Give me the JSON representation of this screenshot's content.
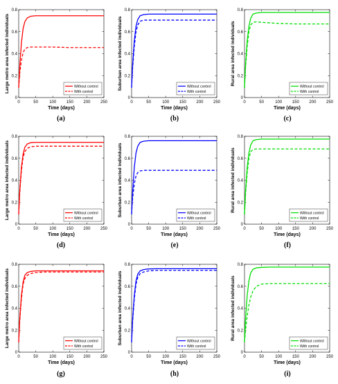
{
  "chart_data": [
    {
      "type": "line",
      "panel_label": "(a)",
      "color": "#ff0000",
      "ylabel": "Large metro area infected individuals",
      "xlabel": "Time (days)",
      "xlim": [
        0,
        250
      ],
      "ylim": [
        0,
        0.8
      ],
      "xticks": [
        0,
        50,
        100,
        150,
        200,
        250
      ],
      "yticks": [
        0,
        0.2,
        0.4,
        0.6,
        0.8
      ],
      "legend_position": "bottom-right",
      "series": [
        {
          "name": "Without control",
          "style": "solid",
          "x": [
            0,
            3,
            8,
            13,
            18,
            25,
            35,
            50,
            75,
            100,
            150,
            200,
            250
          ],
          "y": [
            0.09,
            0.28,
            0.5,
            0.63,
            0.69,
            0.725,
            0.74,
            0.745,
            0.745,
            0.745,
            0.745,
            0.745,
            0.745
          ]
        },
        {
          "name": "With control",
          "style": "dashed",
          "x": [
            0,
            3,
            8,
            13,
            18,
            25,
            35,
            50,
            75,
            100,
            150,
            200,
            250
          ],
          "y": [
            0.09,
            0.22,
            0.34,
            0.41,
            0.44,
            0.455,
            0.46,
            0.46,
            0.46,
            0.46,
            0.455,
            0.455,
            0.455
          ]
        }
      ]
    },
    {
      "type": "line",
      "panel_label": "(b)",
      "color": "#0000ff",
      "ylabel": "Suburban area infected individuals",
      "xlabel": "Time (days)",
      "xlim": [
        0,
        250
      ],
      "ylim": [
        0,
        0.8
      ],
      "xticks": [
        0,
        50,
        100,
        150,
        200,
        250
      ],
      "yticks": [
        0,
        0.2,
        0.4,
        0.6,
        0.8
      ],
      "legend_position": "bottom-right",
      "series": [
        {
          "name": "Without control",
          "style": "solid",
          "x": [
            0,
            3,
            8,
            13,
            18,
            25,
            35,
            50,
            75,
            100,
            150,
            200,
            250
          ],
          "y": [
            0.09,
            0.3,
            0.52,
            0.65,
            0.71,
            0.745,
            0.755,
            0.76,
            0.76,
            0.76,
            0.76,
            0.76,
            0.76
          ]
        },
        {
          "name": "With control",
          "style": "dashed",
          "x": [
            0,
            3,
            8,
            13,
            18,
            25,
            35,
            50,
            75,
            100,
            150,
            200,
            250
          ],
          "y": [
            0.09,
            0.27,
            0.47,
            0.6,
            0.66,
            0.695,
            0.705,
            0.705,
            0.705,
            0.705,
            0.705,
            0.705,
            0.705
          ]
        }
      ]
    },
    {
      "type": "line",
      "panel_label": "(c)",
      "color": "#00dd00",
      "ylabel": "Rural area infected individuals",
      "xlabel": "Time (days)",
      "xlim": [
        0,
        250
      ],
      "ylim": [
        0,
        0.8
      ],
      "xticks": [
        0,
        50,
        100,
        150,
        200,
        250
      ],
      "yticks": [
        0,
        0.2,
        0.4,
        0.6,
        0.8
      ],
      "legend_position": "bottom-right",
      "series": [
        {
          "name": "Without control",
          "style": "solid",
          "x": [
            0,
            3,
            8,
            13,
            18,
            25,
            35,
            50,
            75,
            100,
            150,
            200,
            250
          ],
          "y": [
            0.09,
            0.3,
            0.52,
            0.65,
            0.72,
            0.76,
            0.77,
            0.775,
            0.775,
            0.775,
            0.775,
            0.775,
            0.775
          ]
        },
        {
          "name": "With control",
          "style": "dashed",
          "x": [
            0,
            3,
            8,
            13,
            18,
            25,
            35,
            50,
            75,
            100,
            150,
            200,
            250
          ],
          "y": [
            0.09,
            0.27,
            0.47,
            0.6,
            0.66,
            0.685,
            0.69,
            0.685,
            0.68,
            0.675,
            0.67,
            0.67,
            0.67
          ]
        }
      ]
    },
    {
      "type": "line",
      "panel_label": "(d)",
      "color": "#ff0000",
      "ylabel": "Large metro area infected individuals",
      "xlabel": "Time (days)",
      "xlim": [
        0,
        250
      ],
      "ylim": [
        0,
        0.8
      ],
      "xticks": [
        0,
        50,
        100,
        150,
        200,
        250
      ],
      "yticks": [
        0,
        0.2,
        0.4,
        0.6,
        0.8
      ],
      "legend_position": "bottom-right",
      "series": [
        {
          "name": "Without control",
          "style": "solid",
          "x": [
            0,
            3,
            8,
            13,
            18,
            25,
            35,
            50,
            75,
            100,
            150,
            200,
            250
          ],
          "y": [
            0.09,
            0.3,
            0.52,
            0.64,
            0.7,
            0.73,
            0.742,
            0.745,
            0.745,
            0.745,
            0.745,
            0.745,
            0.745
          ]
        },
        {
          "name": "With control",
          "style": "dashed",
          "x": [
            0,
            3,
            8,
            13,
            18,
            25,
            35,
            50,
            75,
            100,
            150,
            200,
            250
          ],
          "y": [
            0.09,
            0.28,
            0.49,
            0.61,
            0.66,
            0.69,
            0.705,
            0.71,
            0.71,
            0.71,
            0.71,
            0.71,
            0.71
          ]
        }
      ]
    },
    {
      "type": "line",
      "panel_label": "(e)",
      "color": "#0000ff",
      "ylabel": "Suburban area infected individuals",
      "xlabel": "Time (days)",
      "xlim": [
        0,
        250
      ],
      "ylim": [
        0,
        0.8
      ],
      "xticks": [
        0,
        50,
        100,
        150,
        200,
        250
      ],
      "yticks": [
        0,
        0.2,
        0.4,
        0.6,
        0.8
      ],
      "legend_position": "bottom-right",
      "series": [
        {
          "name": "Without control",
          "style": "solid",
          "x": [
            0,
            3,
            8,
            13,
            18,
            25,
            35,
            50,
            75,
            100,
            150,
            200,
            250
          ],
          "y": [
            0.09,
            0.3,
            0.52,
            0.65,
            0.71,
            0.745,
            0.755,
            0.76,
            0.76,
            0.76,
            0.76,
            0.76,
            0.76
          ]
        },
        {
          "name": "With control",
          "style": "dashed",
          "x": [
            0,
            3,
            8,
            13,
            18,
            25,
            35,
            50,
            75,
            100,
            150,
            200,
            250
          ],
          "y": [
            0.09,
            0.24,
            0.37,
            0.44,
            0.47,
            0.485,
            0.49,
            0.49,
            0.49,
            0.49,
            0.49,
            0.49,
            0.49
          ]
        }
      ]
    },
    {
      "type": "line",
      "panel_label": "(f)",
      "color": "#00dd00",
      "ylabel": "Rural area infected individuals",
      "xlabel": "Time (days)",
      "xlim": [
        0,
        250
      ],
      "ylim": [
        0,
        0.8
      ],
      "xticks": [
        0,
        50,
        100,
        150,
        200,
        250
      ],
      "yticks": [
        0,
        0.2,
        0.4,
        0.6,
        0.8
      ],
      "legend_position": "bottom-right",
      "series": [
        {
          "name": "Without control",
          "style": "solid",
          "x": [
            0,
            3,
            8,
            13,
            18,
            25,
            35,
            50,
            75,
            100,
            150,
            200,
            250
          ],
          "y": [
            0.09,
            0.3,
            0.52,
            0.65,
            0.72,
            0.76,
            0.77,
            0.775,
            0.775,
            0.775,
            0.775,
            0.775,
            0.775
          ]
        },
        {
          "name": "With control",
          "style": "dashed",
          "x": [
            0,
            3,
            8,
            13,
            18,
            25,
            35,
            50,
            75,
            100,
            150,
            200,
            250
          ],
          "y": [
            0.09,
            0.27,
            0.47,
            0.6,
            0.66,
            0.68,
            0.685,
            0.685,
            0.685,
            0.685,
            0.685,
            0.685,
            0.685
          ]
        }
      ]
    },
    {
      "type": "line",
      "panel_label": "(g)",
      "color": "#ff0000",
      "ylabel": "Large metro area infected individuals",
      "xlabel": "Time (days)",
      "xlim": [
        0,
        250
      ],
      "ylim": [
        0,
        0.8
      ],
      "xticks": [
        0,
        50,
        100,
        150,
        200,
        250
      ],
      "yticks": [
        0,
        0.2,
        0.4,
        0.6,
        0.8
      ],
      "legend_position": "bottom-right",
      "series": [
        {
          "name": "Without control",
          "style": "solid",
          "x": [
            0,
            3,
            8,
            13,
            18,
            25,
            35,
            50,
            75,
            100,
            150,
            200,
            250
          ],
          "y": [
            0.09,
            0.3,
            0.52,
            0.64,
            0.7,
            0.725,
            0.735,
            0.74,
            0.74,
            0.74,
            0.74,
            0.74,
            0.74
          ]
        },
        {
          "name": "With control",
          "style": "dashed",
          "x": [
            0,
            3,
            8,
            13,
            18,
            25,
            35,
            50,
            75,
            100,
            150,
            200,
            250
          ],
          "y": [
            0.09,
            0.28,
            0.49,
            0.62,
            0.67,
            0.7,
            0.715,
            0.725,
            0.73,
            0.73,
            0.73,
            0.73,
            0.73
          ]
        }
      ]
    },
    {
      "type": "line",
      "panel_label": "(h)",
      "color": "#0000ff",
      "ylabel": "Suburban area infected individuals",
      "xlabel": "Time (days)",
      "xlim": [
        0,
        250
      ],
      "ylim": [
        0,
        0.8
      ],
      "xticks": [
        0,
        50,
        100,
        150,
        200,
        250
      ],
      "yticks": [
        0,
        0.2,
        0.4,
        0.6,
        0.8
      ],
      "legend_position": "bottom-right",
      "series": [
        {
          "name": "Without control",
          "style": "solid",
          "x": [
            0,
            3,
            8,
            13,
            18,
            25,
            35,
            50,
            75,
            100,
            150,
            200,
            250
          ],
          "y": [
            0.09,
            0.3,
            0.52,
            0.65,
            0.71,
            0.74,
            0.752,
            0.758,
            0.76,
            0.76,
            0.76,
            0.76,
            0.76
          ]
        },
        {
          "name": "With control",
          "style": "dashed",
          "x": [
            0,
            3,
            8,
            13,
            18,
            25,
            35,
            50,
            75,
            100,
            150,
            200,
            250
          ],
          "y": [
            0.09,
            0.28,
            0.49,
            0.62,
            0.68,
            0.715,
            0.73,
            0.74,
            0.745,
            0.745,
            0.745,
            0.745,
            0.745
          ]
        }
      ]
    },
    {
      "type": "line",
      "panel_label": "(i)",
      "color": "#00dd00",
      "ylabel": "Rural area infected individuals",
      "xlabel": "Time (days)",
      "xlim": [
        0,
        250
      ],
      "ylim": [
        0,
        0.8
      ],
      "xticks": [
        0,
        50,
        100,
        150,
        200,
        250
      ],
      "yticks": [
        0,
        0.2,
        0.4,
        0.6,
        0.8
      ],
      "legend_position": "bottom-right",
      "series": [
        {
          "name": "Without control",
          "style": "solid",
          "x": [
            0,
            3,
            8,
            13,
            18,
            25,
            35,
            50,
            75,
            100,
            150,
            200,
            250
          ],
          "y": [
            0.09,
            0.3,
            0.52,
            0.65,
            0.72,
            0.755,
            0.768,
            0.772,
            0.775,
            0.775,
            0.775,
            0.775,
            0.775
          ]
        },
        {
          "name": "With control",
          "style": "dashed",
          "x": [
            0,
            3,
            8,
            13,
            18,
            25,
            35,
            50,
            75,
            100,
            150,
            200,
            250
          ],
          "y": [
            0.09,
            0.2,
            0.33,
            0.43,
            0.5,
            0.56,
            0.6,
            0.62,
            0.625,
            0.625,
            0.625,
            0.625,
            0.625
          ]
        }
      ]
    }
  ]
}
